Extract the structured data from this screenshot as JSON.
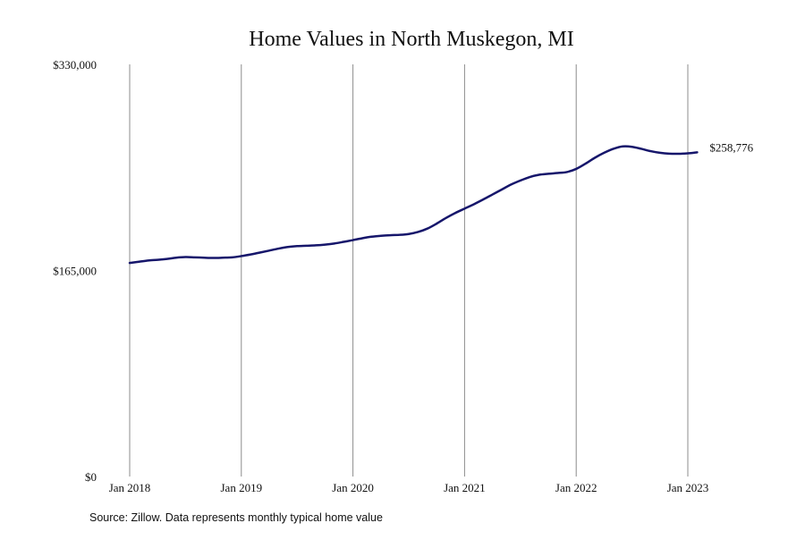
{
  "colors": {
    "line": "#16166b",
    "grid": "#8c8c8c",
    "text": "#111111",
    "background": "#ffffff"
  },
  "source_note": "Source: Zillow. Data represents monthly typical home value",
  "chart_data": {
    "type": "line",
    "title": "Home Values in North Muskegon, MI",
    "xlabel": "",
    "ylabel": "",
    "ylim": [
      0,
      330000
    ],
    "y_ticks": [
      0,
      165000,
      330000
    ],
    "y_tick_labels": [
      "$0",
      "$165,000",
      "$330,000"
    ],
    "x_ticks": [
      "2018-01",
      "2019-01",
      "2020-01",
      "2021-01",
      "2022-01",
      "2023-01"
    ],
    "x_tick_labels": [
      "Jan 2018",
      "Jan 2019",
      "Jan 2020",
      "Jan 2021",
      "Jan 2022",
      "Jan 2023"
    ],
    "x_range": [
      "2018-01",
      "2023-01"
    ],
    "grid": "vertical",
    "legend": "none",
    "end_label": "$258,776",
    "series": [
      {
        "x": [
          "2018-01",
          "2018-02",
          "2018-03",
          "2018-04",
          "2018-05",
          "2018-06",
          "2018-07",
          "2018-08",
          "2018-09",
          "2018-10",
          "2018-11",
          "2018-12",
          "2019-01",
          "2019-02",
          "2019-03",
          "2019-04",
          "2019-05",
          "2019-06",
          "2019-07",
          "2019-08",
          "2019-09",
          "2019-10",
          "2019-11",
          "2019-12",
          "2020-01",
          "2020-02",
          "2020-03",
          "2020-04",
          "2020-05",
          "2020-06",
          "2020-07",
          "2020-08",
          "2020-09",
          "2020-10",
          "2020-11",
          "2020-12",
          "2021-01",
          "2021-02",
          "2021-03",
          "2021-04",
          "2021-05",
          "2021-06",
          "2021-07",
          "2021-08",
          "2021-09",
          "2021-10",
          "2021-11",
          "2021-12",
          "2022-01",
          "2022-02",
          "2022-03",
          "2022-04",
          "2022-05",
          "2022-06",
          "2022-07",
          "2022-08",
          "2022-09",
          "2022-10",
          "2022-11",
          "2022-12",
          "2023-01",
          "2023-02"
        ],
        "values": [
          171000,
          172000,
          173000,
          173500,
          174200,
          175200,
          175700,
          175500,
          175200,
          175000,
          175200,
          175500,
          176500,
          177800,
          179300,
          180900,
          182500,
          183800,
          184500,
          184800,
          185100,
          185700,
          186600,
          187900,
          189300,
          190800,
          192000,
          192700,
          193200,
          193500,
          194200,
          195800,
          198500,
          202500,
          207000,
          211000,
          214500,
          218000,
          221800,
          225800,
          229800,
          233800,
          237000,
          239800,
          241600,
          242400,
          243000,
          243800,
          246300,
          250500,
          255200,
          259200,
          262400,
          264300,
          264000,
          262400,
          260500,
          259200,
          258500,
          258400,
          258776,
          259600
        ]
      }
    ]
  }
}
